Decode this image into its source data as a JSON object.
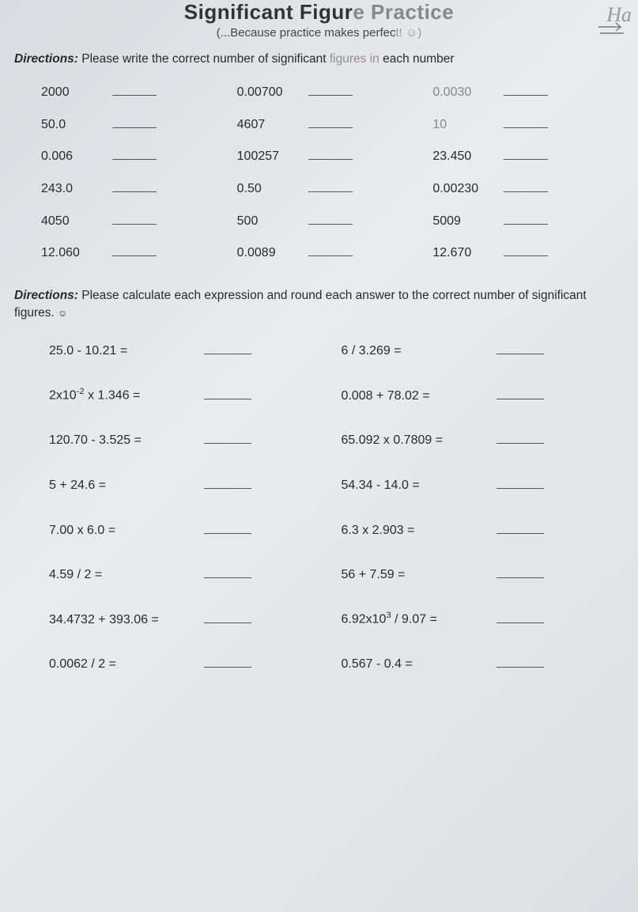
{
  "header": {
    "title_strong": "Significant Figur",
    "title_faded": "e Practice",
    "subtitle_pre": "(...Because practice makes perfec",
    "subtitle_faded": "t! ☺)",
    "corner_script": "Ha"
  },
  "section1": {
    "directions_label": "Directions:",
    "directions_text_pre": " Please write the correct number of significant ",
    "directions_text_faded": "figures in",
    "directions_text_post": " each number",
    "col1": [
      "2000",
      "50.0",
      "0.006",
      "243.0",
      "4050",
      "12.060"
    ],
    "col2": [
      "0.00700",
      "4607",
      "100257",
      "0.50",
      "500",
      "0.0089"
    ],
    "col3": [
      "0.0030",
      "10",
      "23.450",
      "0.00230",
      "5009",
      "12.670"
    ]
  },
  "section2": {
    "directions_label": "Directions:",
    "directions_text": " Please calculate each expression and round each answer to the correct number of significant figures. ",
    "smiley": "☺",
    "left": [
      "25.0 - 10.21 =",
      "2x10⁻² x 1.346 =",
      "120.70 - 3.525 =",
      "5 + 24.6 =",
      "7.00 x 6.0 =",
      "4.59 / 2 =",
      "34.4732 + 393.06 =",
      "0.0062 / 2 ="
    ],
    "right": [
      "6 / 3.269 =",
      "0.008 + 78.02 =",
      "65.092 x 0.7809 =",
      "54.34 - 14.0 =",
      "6.3 x 2.903 =",
      "56 + 7.59 =",
      "6.92x10³ / 9.07 =",
      "0.567 - 0.4 ="
    ]
  }
}
